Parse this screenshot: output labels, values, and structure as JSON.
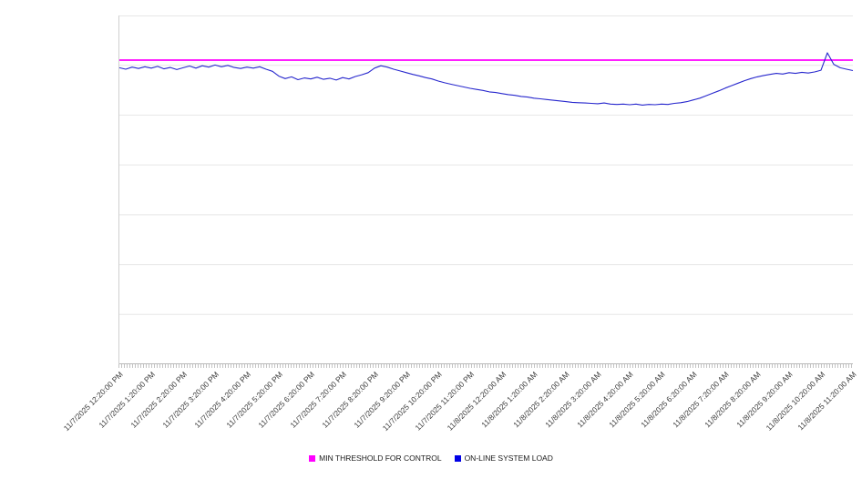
{
  "page": {
    "background": "#ffffff"
  },
  "style": {
    "grid_color": "#e7e7e7",
    "axis_color": "#b9b9b9",
    "minor_tick_color": "#c4c4c4",
    "tick_label_color": "#3c3c3c",
    "legend_text_color": "#1a1a1a"
  },
  "legend": {
    "items": [
      {
        "label": "MIN THRESHOLD FOR CONTROL",
        "color": "#ff00ff"
      },
      {
        "label": "ON-LINE SYSTEM LOAD",
        "color": "#0000e6"
      }
    ]
  },
  "chart_data": {
    "type": "line",
    "title": "",
    "xlabel": "",
    "ylabel": "",
    "y_axis_labeled": false,
    "y_units": "unlabeled (values normalized to 0-100 of plot height)",
    "ylim": [
      0,
      100
    ],
    "grid": "horizontal",
    "grid_divisions": 7,
    "legend_position": "bottom",
    "x_start": "11/7/2025 12:20:00 PM",
    "x_end": "11/8/2025 11:20:00 AM",
    "x_interval_minutes": 12,
    "x_tick_labels": [
      "11/7/2025 12:20:00 PM",
      "11/7/2025 1:20:00 PM",
      "11/7/2025 2:20:00 PM",
      "11/7/2025 3:20:00 PM",
      "11/7/2025 4:20:00 PM",
      "11/7/2025 5:20:00 PM",
      "11/7/2025 6:20:00 PM",
      "11/7/2025 7:20:00 PM",
      "11/7/2025 8:20:00 PM",
      "11/7/2025 9:20:00 PM",
      "11/7/2025 10:20:00 PM",
      "11/7/2025 11:20:00 PM",
      "11/8/2025 12:20:00 AM",
      "11/8/2025 1:20:00 AM",
      "11/8/2025 2:20:00 AM",
      "11/8/2025 3:20:00 AM",
      "11/8/2025 4:20:00 AM",
      "11/8/2025 5:20:00 AM",
      "11/8/2025 6:20:00 AM",
      "11/8/2025 7:20:00 AM",
      "11/8/2025 8:20:00 AM",
      "11/8/2025 9:20:00 AM",
      "11/8/2025 10:20:00 AM",
      "11/8/2025 11:20:00 AM"
    ],
    "series": [
      {
        "name": "MIN THRESHOLD FOR CONTROL",
        "kind": "threshold",
        "color": "#ff00ff",
        "value": 87.2
      },
      {
        "name": "ON-LINE SYSTEM LOAD",
        "kind": "line",
        "color": "#2727cd",
        "values": [
          85.0,
          84.6,
          85.2,
          84.8,
          85.3,
          84.9,
          85.4,
          84.7,
          85.1,
          84.5,
          85.0,
          85.5,
          84.9,
          85.6,
          85.2,
          85.8,
          85.3,
          85.7,
          85.1,
          84.8,
          85.2,
          84.9,
          85.3,
          84.6,
          84.0,
          82.6,
          81.9,
          82.4,
          81.6,
          82.1,
          81.8,
          82.3,
          81.7,
          82.0,
          81.5,
          82.2,
          81.8,
          82.5,
          83.0,
          83.6,
          84.9,
          85.6,
          85.2,
          84.6,
          84.1,
          83.6,
          83.1,
          82.7,
          82.2,
          81.8,
          81.2,
          80.7,
          80.3,
          79.9,
          79.5,
          79.1,
          78.8,
          78.5,
          78.1,
          77.9,
          77.6,
          77.3,
          77.1,
          76.8,
          76.6,
          76.3,
          76.1,
          75.9,
          75.7,
          75.5,
          75.3,
          75.1,
          75.0,
          74.9,
          74.8,
          74.7,
          74.9,
          74.6,
          74.5,
          74.6,
          74.4,
          74.6,
          74.3,
          74.5,
          74.4,
          74.6,
          74.5,
          74.8,
          75.0,
          75.3,
          75.8,
          76.3,
          77.0,
          77.7,
          78.4,
          79.2,
          79.9,
          80.6,
          81.3,
          81.9,
          82.4,
          82.8,
          83.1,
          83.4,
          83.2,
          83.6,
          83.4,
          83.7,
          83.5,
          83.8,
          84.3,
          89.3,
          86.0,
          85.0,
          84.6,
          84.2
        ]
      }
    ]
  }
}
